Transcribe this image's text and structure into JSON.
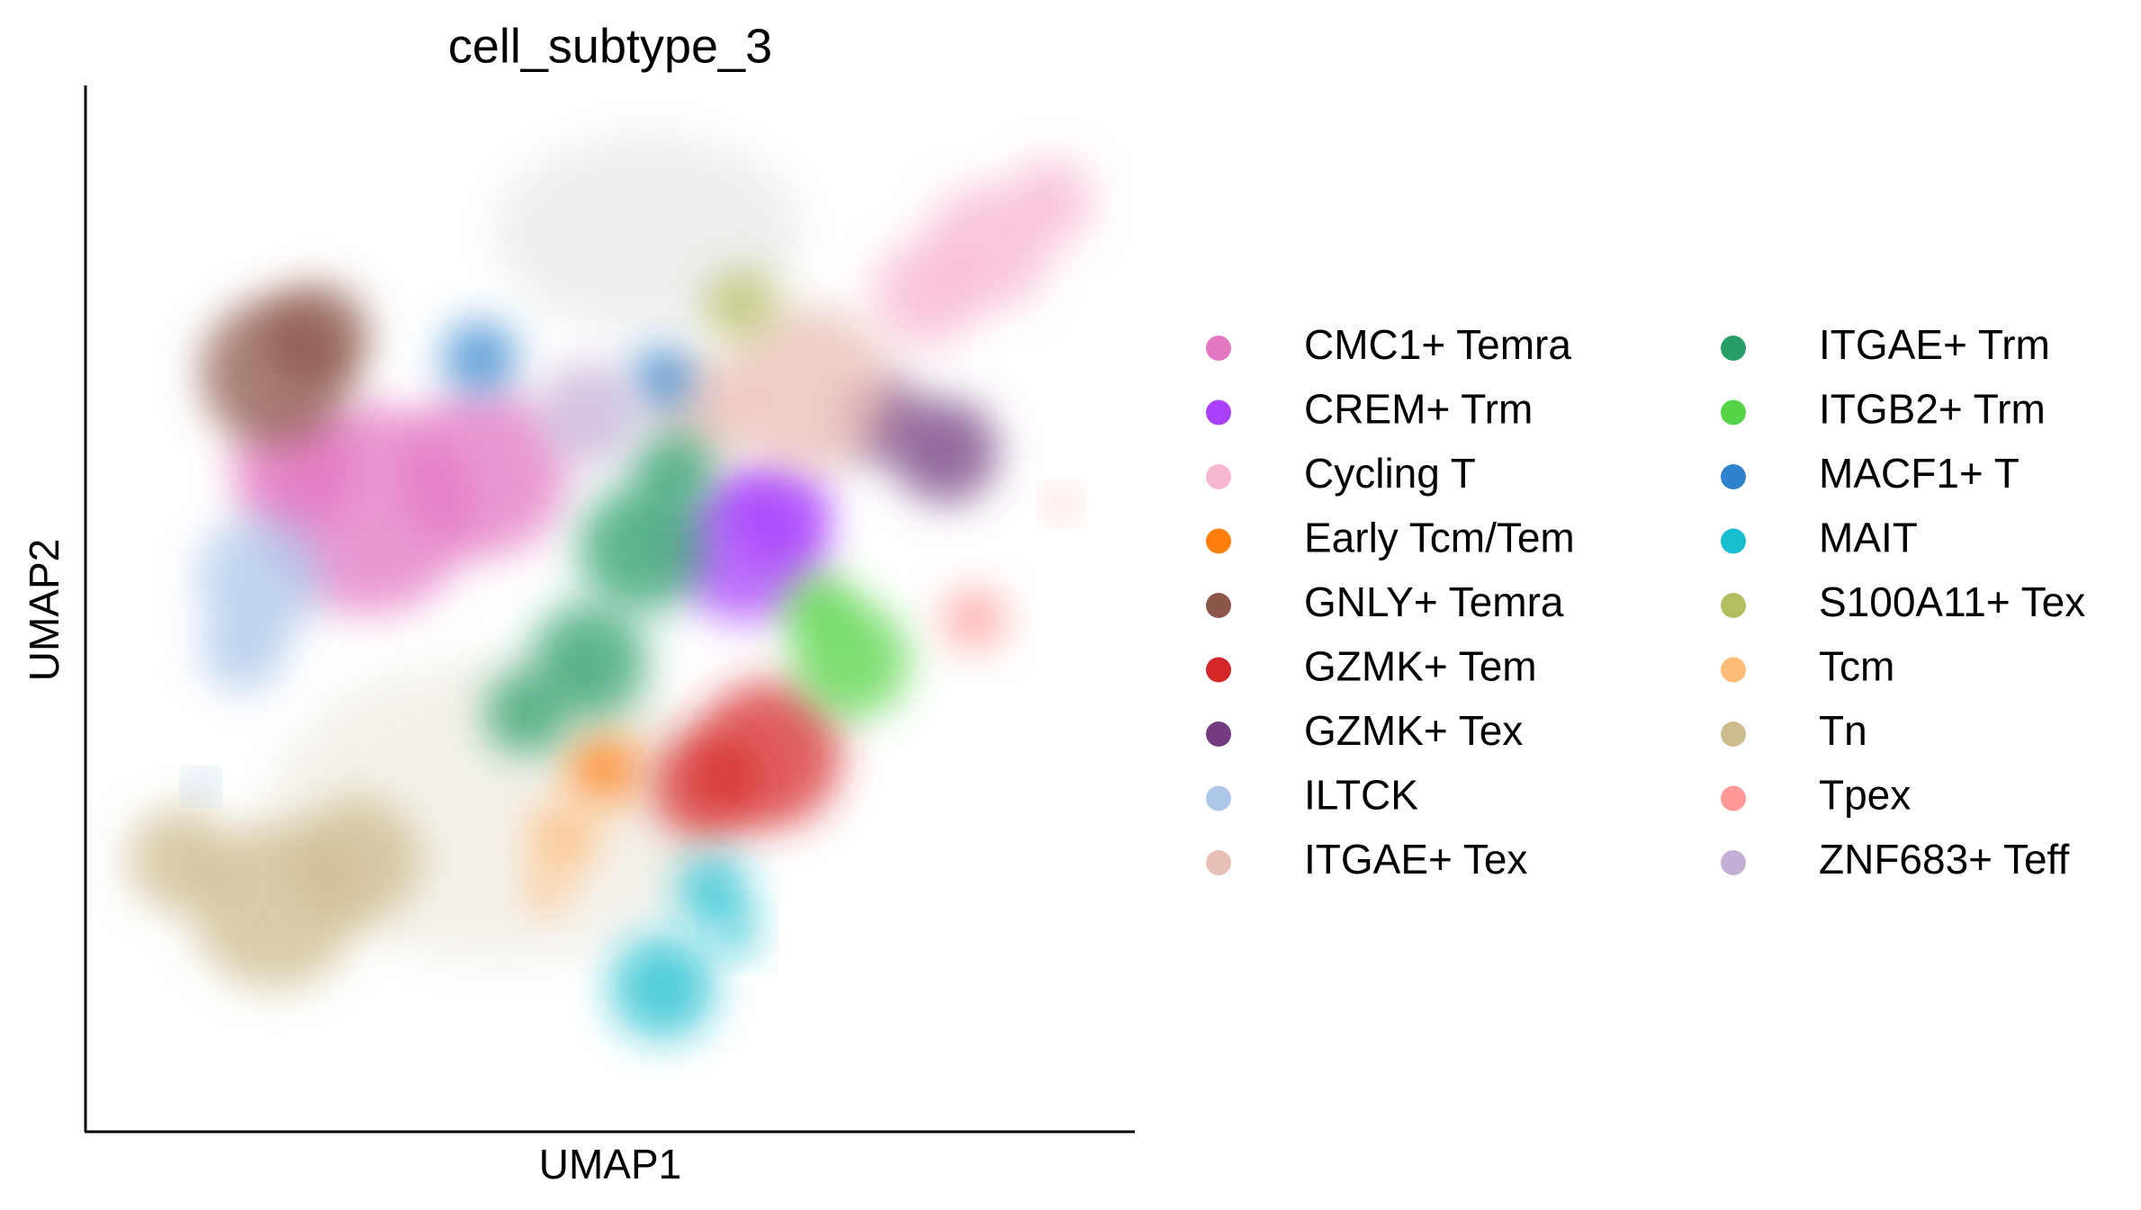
{
  "chart_data": {
    "type": "scatter",
    "title": "cell_subtype_3",
    "x_label": "UMAP1",
    "y_label": "UMAP2",
    "xlim": [
      0,
      10
    ],
    "ylim": [
      0,
      10
    ],
    "series": [
      {
        "name": "CMC1+ Temra",
        "color": "#e377c2",
        "x": [
          2.7,
          3.8,
          2.0
        ],
        "y": [
          5.95,
          6.3,
          6.3
        ],
        "sizes": [
          1.0,
          0.8,
          0.6
        ]
      },
      {
        "name": "CREM+ Trm",
        "color": "#aa40fc",
        "x": [
          6.3,
          6.6
        ],
        "y": [
          5.57,
          5.9
        ],
        "sizes": [
          0.7,
          0.5
        ]
      },
      {
        "name": "Cycling T",
        "color": "#f7b6d2",
        "x": [
          8.6,
          9.2,
          8.0
        ],
        "y": [
          8.45,
          8.9,
          8.0
        ],
        "sizes": [
          0.6,
          0.4,
          0.5
        ]
      },
      {
        "name": "Early Tcm/Tem",
        "color": "#ff7f0e",
        "x": [
          4.94
        ],
        "y": [
          3.47
        ],
        "sizes": [
          0.35
        ]
      },
      {
        "name": "GNLY+ Temra",
        "color": "#8c564b",
        "x": [
          1.8,
          2.2
        ],
        "y": [
          7.25,
          7.6
        ],
        "sizes": [
          0.7,
          0.5
        ]
      },
      {
        "name": "GZMK+ Tem",
        "color": "#d62728",
        "x": [
          6.5,
          5.9
        ],
        "y": [
          3.6,
          3.3
        ],
        "sizes": [
          0.7,
          0.5
        ]
      },
      {
        "name": "GZMK+ Tex",
        "color": "#723c7e",
        "x": [
          8.2,
          7.6
        ],
        "y": [
          6.5,
          6.8
        ],
        "sizes": [
          0.5,
          0.4
        ]
      },
      {
        "name": "ILTCK",
        "color": "#aec7e8",
        "x": [
          1.67,
          1.5
        ],
        "y": [
          5.3,
          4.6
        ],
        "sizes": [
          0.6,
          0.4
        ]
      },
      {
        "name": "ITGAE+ Tex",
        "color": "#e8bfb6",
        "x": [
          6.9,
          5.9
        ],
        "y": [
          7.1,
          6.9
        ],
        "sizes": [
          0.8,
          0.5
        ]
      },
      {
        "name": "ITGAE+ Trm",
        "color": "#279e68",
        "x": [
          5.3,
          4.8,
          4.2,
          5.6
        ],
        "y": [
          5.57,
          4.5,
          4.0,
          6.3
        ],
        "sizes": [
          0.6,
          0.55,
          0.4,
          0.4
        ]
      },
      {
        "name": "ITGB2+ Trm",
        "color": "#55d447",
        "x": [
          7.3,
          7.0
        ],
        "y": [
          4.5,
          5.0
        ],
        "sizes": [
          0.55,
          0.35
        ]
      },
      {
        "name": "MACF1+ T",
        "color": "#2f83cc",
        "x": [
          3.76,
          5.5,
          1.1
        ],
        "y": [
          7.4,
          7.2,
          3.3
        ],
        "sizes": [
          0.35,
          0.3,
          0.1
        ]
      },
      {
        "name": "MAIT",
        "color": "#17becf",
        "x": [
          5.5,
          5.98,
          6.2
        ],
        "y": [
          1.38,
          2.3,
          1.9
        ],
        "sizes": [
          0.5,
          0.35,
          0.2
        ]
      },
      {
        "name": "S100A11+ Tex",
        "color": "#b5bd61",
        "x": [
          6.25
        ],
        "y": [
          7.9
        ],
        "sizes": [
          0.35
        ]
      },
      {
        "name": "Tcm",
        "color": "#ffbb78",
        "x": [
          4.55,
          4.4
        ],
        "y": [
          2.8,
          2.3
        ],
        "sizes": [
          0.35,
          0.2
        ]
      },
      {
        "name": "Tn",
        "color": "#ccbb8d",
        "x": [
          1.8,
          2.6,
          0.9
        ],
        "y": [
          2.16,
          2.6,
          2.6
        ],
        "sizes": [
          0.8,
          0.6,
          0.5
        ]
      },
      {
        "name": "Tpex",
        "color": "#ff9896",
        "x": [
          8.47,
          9.3
        ],
        "y": [
          4.9,
          6.0
        ],
        "sizes": [
          0.3,
          0.12
        ]
      },
      {
        "name": "ZNF683+ Teff",
        "color": "#c5b0d5",
        "x": [
          4.8
        ],
        "y": [
          6.86
        ],
        "sizes": [
          0.5
        ]
      }
    ]
  }
}
